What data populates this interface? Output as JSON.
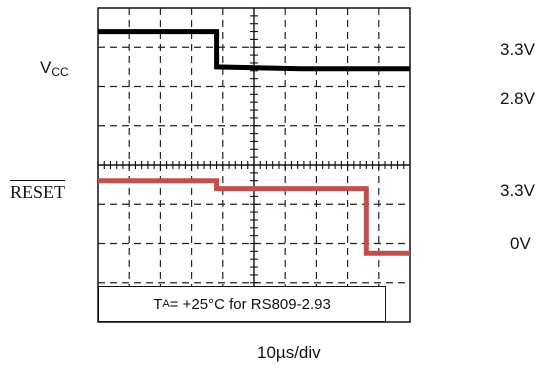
{
  "chart_data": {
    "type": "line",
    "title": "",
    "xlabel": "10µs/div",
    "x_divisions": 10,
    "y_divisions": 8,
    "grid": true,
    "traces": [
      {
        "name": "VCC",
        "label_main": "V",
        "label_sub": "CC",
        "color": "#000000",
        "x_div": [
          0,
          3.8,
          3.8,
          6.5,
          10
        ],
        "y_div": [
          7.4,
          7.4,
          6.5,
          6.45,
          6.45
        ],
        "level_labels": [
          "3.3V",
          "2.8V"
        ]
      },
      {
        "name": "RESET",
        "label": "RESET",
        "active_low": true,
        "color": "#c0504d",
        "x_div": [
          0,
          3.8,
          3.8,
          8.6,
          8.6,
          10
        ],
        "y_div": [
          3.6,
          3.6,
          3.4,
          3.4,
          1.75,
          1.75
        ],
        "level_labels": [
          "3.3V",
          "0V"
        ]
      }
    ],
    "annotation": {
      "prefix": "T",
      "sub": "A",
      "text": "= +25°C for RS809-2.93"
    }
  }
}
